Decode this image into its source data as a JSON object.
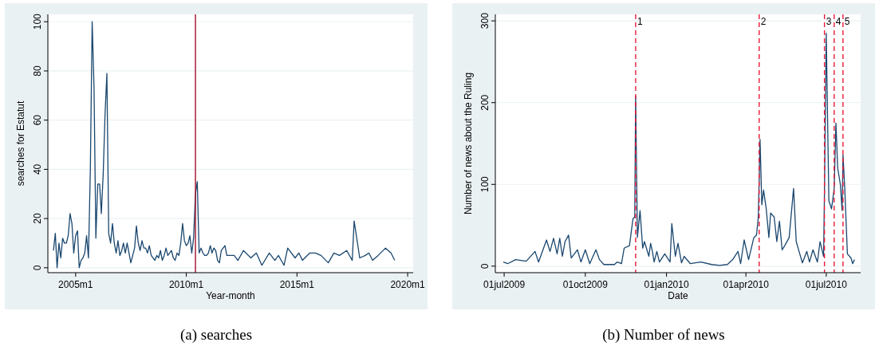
{
  "chart_data": [
    {
      "type": "line",
      "title": "(a) searches",
      "xlabel": "Year-month",
      "ylabel": "searches for Estatut",
      "grid": "y",
      "xlim": [
        "2003-10",
        "2020-04"
      ],
      "ylim": [
        -2,
        103
      ],
      "xticks": [
        {
          "value": "2005-01",
          "label": "2005m1"
        },
        {
          "value": "2010-01",
          "label": "2010m1"
        },
        {
          "value": "2015-01",
          "label": "2015m1"
        },
        {
          "value": "2020-01",
          "label": "2020m1"
        }
      ],
      "yticks": [
        0,
        20,
        40,
        60,
        80,
        100
      ],
      "ref_lines": [
        {
          "axis": "x",
          "value": "2010-06",
          "color": "#a0102a",
          "line_style": "solid"
        }
      ],
      "series": [
        {
          "color": "#1a476f",
          "x": [
            "2004-01",
            "2004-02",
            "2004-03",
            "2004-04",
            "2004-05",
            "2004-06",
            "2004-07",
            "2004-08",
            "2004-09",
            "2004-10",
            "2004-11",
            "2004-12",
            "2005-01",
            "2005-02",
            "2005-03",
            "2005-04",
            "2005-05",
            "2005-06",
            "2005-07",
            "2005-08",
            "2005-09",
            "2005-10",
            "2005-11",
            "2005-12",
            "2006-01",
            "2006-02",
            "2006-03",
            "2006-04",
            "2006-05",
            "2006-06",
            "2006-07",
            "2006-08",
            "2006-09",
            "2006-10",
            "2006-11",
            "2006-12",
            "2007-01",
            "2007-02",
            "2007-03",
            "2007-04",
            "2007-05",
            "2007-06",
            "2007-07",
            "2007-08",
            "2007-09",
            "2007-10",
            "2007-11",
            "2007-12",
            "2008-01",
            "2008-02",
            "2008-03",
            "2008-04",
            "2008-05",
            "2008-06",
            "2008-07",
            "2008-08",
            "2008-09",
            "2008-10",
            "2008-11",
            "2008-12",
            "2009-01",
            "2009-02",
            "2009-03",
            "2009-04",
            "2009-05",
            "2009-06",
            "2009-07",
            "2009-08",
            "2009-09",
            "2009-10",
            "2009-11",
            "2009-12",
            "2010-01",
            "2010-02",
            "2010-03",
            "2010-04",
            "2010-05",
            "2010-06",
            "2010-07",
            "2010-08",
            "2010-09",
            "2010-10",
            "2010-11",
            "2010-12",
            "2011-01",
            "2011-02",
            "2011-03",
            "2011-04",
            "2011-05",
            "2011-06",
            "2011-07",
            "2011-08",
            "2011-09",
            "2011-10",
            "2011-11",
            "2011-12",
            "2012-03",
            "2012-05",
            "2012-08",
            "2012-12",
            "2013-03",
            "2013-06",
            "2013-10",
            "2014-01",
            "2014-03",
            "2014-06",
            "2014-08",
            "2014-12",
            "2015-02",
            "2015-04",
            "2015-08",
            "2015-11",
            "2016-02",
            "2016-06",
            "2016-09",
            "2016-12",
            "2017-04",
            "2017-07",
            "2017-08",
            "2017-11",
            "2018-02",
            "2018-04",
            "2018-06",
            "2018-09",
            "2019-01",
            "2019-04",
            "2019-06"
          ],
          "values": [
            7,
            14,
            0,
            10,
            4,
            12,
            10,
            10,
            13,
            22,
            18,
            6,
            13,
            15,
            0,
            3,
            4,
            6,
            13,
            4,
            40,
            100,
            73,
            12,
            34,
            34,
            22,
            38,
            62,
            79,
            14,
            10,
            18,
            10,
            6,
            11,
            5,
            7,
            10,
            6,
            10,
            6,
            2,
            5,
            8,
            17,
            10,
            7,
            11,
            8,
            8,
            6,
            9,
            5,
            4,
            3,
            5,
            4,
            7,
            3,
            5,
            8,
            5,
            6,
            7,
            4,
            3,
            6,
            5,
            10,
            18,
            11,
            9,
            10,
            13,
            6,
            12,
            30,
            35,
            6,
            8,
            6,
            5,
            5,
            6,
            9,
            6,
            8,
            7,
            3,
            2,
            7,
            8,
            9,
            5,
            5,
            5,
            3,
            7,
            4,
            6,
            1,
            6,
            3,
            5,
            1,
            8,
            4,
            6,
            3,
            6,
            6,
            5,
            2,
            6,
            5,
            7,
            3,
            19,
            4,
            5,
            6,
            3,
            5,
            8,
            6,
            3
          ]
        }
      ]
    },
    {
      "type": "line",
      "title": "(b) Number of news",
      "xlabel": "Date",
      "ylabel": "Number of news about the Ruling",
      "grid": "y",
      "xlim": [
        "2009-06-21",
        "2010-08-09"
      ],
      "ylim": [
        -8,
        308
      ],
      "xticks": [
        {
          "value": "2009-07-01",
          "label": "01jul2009"
        },
        {
          "value": "2009-10-01",
          "label": "01oct2009"
        },
        {
          "value": "2010-01-01",
          "label": "01jan2010"
        },
        {
          "value": "2010-04-01",
          "label": "01apr2010"
        },
        {
          "value": "2010-07-01",
          "label": "01jul2010"
        }
      ],
      "yticks": [
        0,
        100,
        200,
        300
      ],
      "ref_lines": [
        {
          "axis": "x",
          "value": "2009-11-27",
          "label": "1",
          "color": "#e8193c",
          "line_style": "dashed"
        },
        {
          "axis": "x",
          "value": "2010-04-16",
          "label": "2",
          "color": "#e8193c",
          "line_style": "dashed"
        },
        {
          "axis": "x",
          "value": "2010-06-29",
          "label": "3",
          "color": "#e8193c",
          "line_style": "dashed"
        },
        {
          "axis": "x",
          "value": "2010-07-10",
          "label": "4",
          "color": "#e8193c",
          "line_style": "dashed"
        },
        {
          "axis": "x",
          "value": "2010-07-20",
          "label": "5",
          "color": "#e8193c",
          "line_style": "dashed"
        }
      ],
      "series": [
        {
          "color": "#1a476f",
          "x": [
            "2009-06-30",
            "2009-07-05",
            "2009-07-14",
            "2009-07-26",
            "2009-08-05",
            "2009-08-09",
            "2009-08-18",
            "2009-08-22",
            "2009-08-26",
            "2009-08-30",
            "2009-09-02",
            "2009-09-05",
            "2009-09-08",
            "2009-09-12",
            "2009-09-15",
            "2009-09-22",
            "2009-09-26",
            "2009-10-01",
            "2009-10-06",
            "2009-10-13",
            "2009-10-17",
            "2009-10-22",
            "2009-11-03",
            "2009-11-06",
            "2009-11-11",
            "2009-11-14",
            "2009-11-20",
            "2009-11-24",
            "2009-11-26",
            "2009-11-27",
            "2009-11-29",
            "2009-12-02",
            "2009-12-05",
            "2009-12-07",
            "2009-12-12",
            "2009-12-14",
            "2009-12-16",
            "2009-12-18",
            "2009-12-21",
            "2009-12-24",
            "2009-12-30",
            "2010-01-05",
            "2010-01-07",
            "2010-01-11",
            "2010-01-14",
            "2010-01-18",
            "2010-01-21",
            "2010-01-28",
            "2010-02-09",
            "2010-02-21",
            "2010-03-02",
            "2010-03-11",
            "2010-03-17",
            "2010-03-23",
            "2010-03-26",
            "2010-03-30",
            "2010-04-04",
            "2010-04-10",
            "2010-04-13",
            "2010-04-15",
            "2010-04-17",
            "2010-04-19",
            "2010-04-21",
            "2010-04-24",
            "2010-04-27",
            "2010-04-29",
            "2010-05-03",
            "2010-05-06",
            "2010-05-09",
            "2010-05-12",
            "2010-05-15",
            "2010-05-20",
            "2010-05-25",
            "2010-05-28",
            "2010-06-01",
            "2010-06-04",
            "2010-06-09",
            "2010-06-12",
            "2010-06-16",
            "2010-06-21",
            "2010-06-24",
            "2010-06-28",
            "2010-06-29",
            "2010-07-01",
            "2010-07-04",
            "2010-07-07",
            "2010-07-10",
            "2010-07-12",
            "2010-07-14",
            "2010-07-17",
            "2010-07-19",
            "2010-07-20",
            "2010-07-22",
            "2010-07-25",
            "2010-07-29",
            "2010-07-31",
            "2010-08-02"
          ],
          "values": [
            5,
            3,
            8,
            6,
            18,
            5,
            32,
            18,
            34,
            15,
            34,
            12,
            30,
            38,
            10,
            20,
            5,
            20,
            3,
            20,
            8,
            2,
            2,
            5,
            3,
            22,
            25,
            58,
            60,
            208,
            35,
            68,
            22,
            30,
            12,
            28,
            18,
            5,
            18,
            5,
            15,
            5,
            52,
            12,
            28,
            4,
            12,
            3,
            5,
            2,
            1,
            2,
            8,
            18,
            3,
            32,
            8,
            35,
            38,
            60,
            155,
            75,
            93,
            70,
            35,
            65,
            60,
            30,
            55,
            20,
            25,
            35,
            95,
            30,
            15,
            4,
            18,
            5,
            20,
            5,
            30,
            12,
            90,
            285,
            80,
            70,
            95,
            175,
            120,
            100,
            68,
            136,
            95,
            15,
            10,
            3,
            8
          ]
        }
      ]
    }
  ]
}
